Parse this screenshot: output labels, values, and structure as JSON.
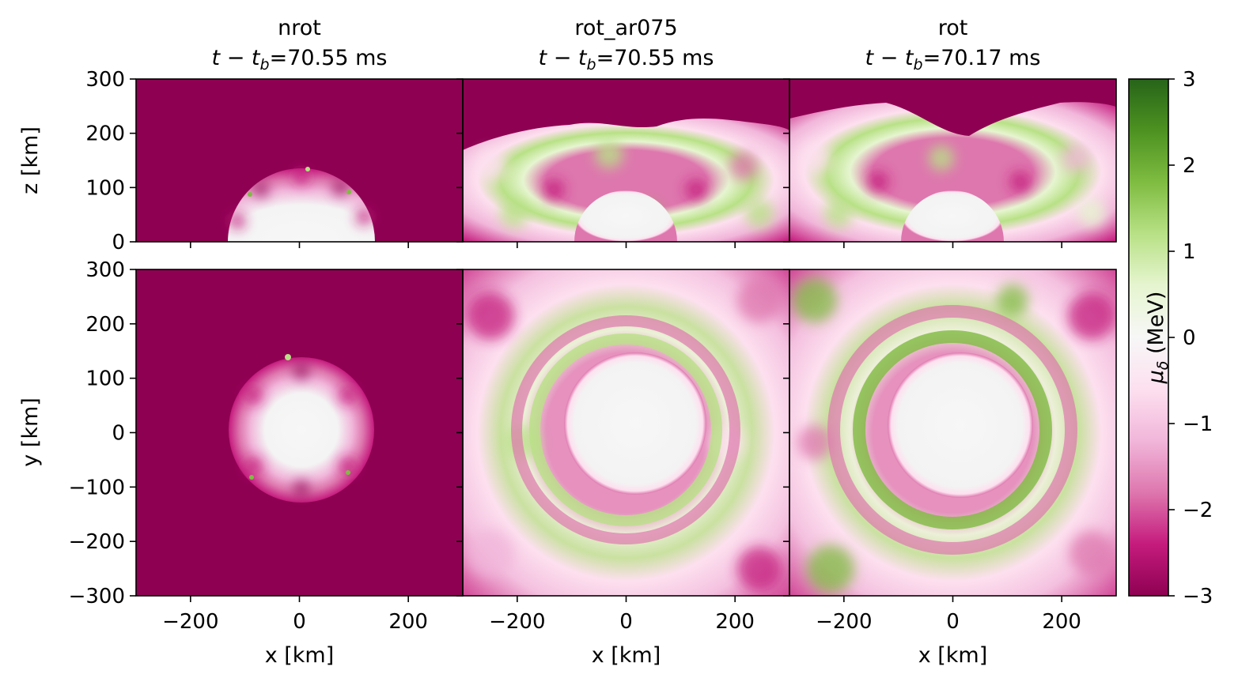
{
  "chart_data": {
    "type": "heatmap",
    "panels": [
      {
        "run": "nrot",
        "time_prefix": "t − t",
        "time_sub": "b",
        "time_value": "=70.55 ms"
      },
      {
        "run": "rot_ar075",
        "time_prefix": "t − t",
        "time_sub": "b",
        "time_value": "=70.55 ms"
      },
      {
        "run": "rot",
        "time_prefix": "t − t",
        "time_sub": "b",
        "time_value": "=70.17 ms"
      }
    ],
    "top_row": {
      "ylabel": "z [km]",
      "yticks": [
        "300",
        "200",
        "100",
        "0"
      ],
      "ylim": [
        0,
        300
      ]
    },
    "bottom_row": {
      "ylabel": "y [km]",
      "yticks": [
        "300",
        "200",
        "100",
        "0",
        "−100",
        "−200",
        "−300"
      ],
      "ylim": [
        -300,
        300
      ]
    },
    "x_axis": {
      "xlabel": "x [km]",
      "xticks": [
        "−200",
        "0",
        "200"
      ],
      "xlim": [
        -300,
        300
      ]
    },
    "colorbar": {
      "label_symbol": "μ",
      "label_sub": "δ",
      "label_unit": " (MeV)",
      "ticks": [
        "3",
        "2",
        "1",
        "0",
        "−1",
        "−2",
        "−3"
      ],
      "range": [
        -3,
        3
      ],
      "colors": [
        "#8e0152",
        "#c51b7d",
        "#de77ae",
        "#f1b6da",
        "#fde0ef",
        "#f7f7f7",
        "#e6f5d0",
        "#b8e186",
        "#7fbc41",
        "#4d9221",
        "#276419"
      ]
    },
    "shock_radius_km": [
      {
        "nrot": 135
      },
      {
        "rot_ar075": 170
      },
      {
        "rot": 175
      }
    ],
    "pns_radius_km": 95
  }
}
